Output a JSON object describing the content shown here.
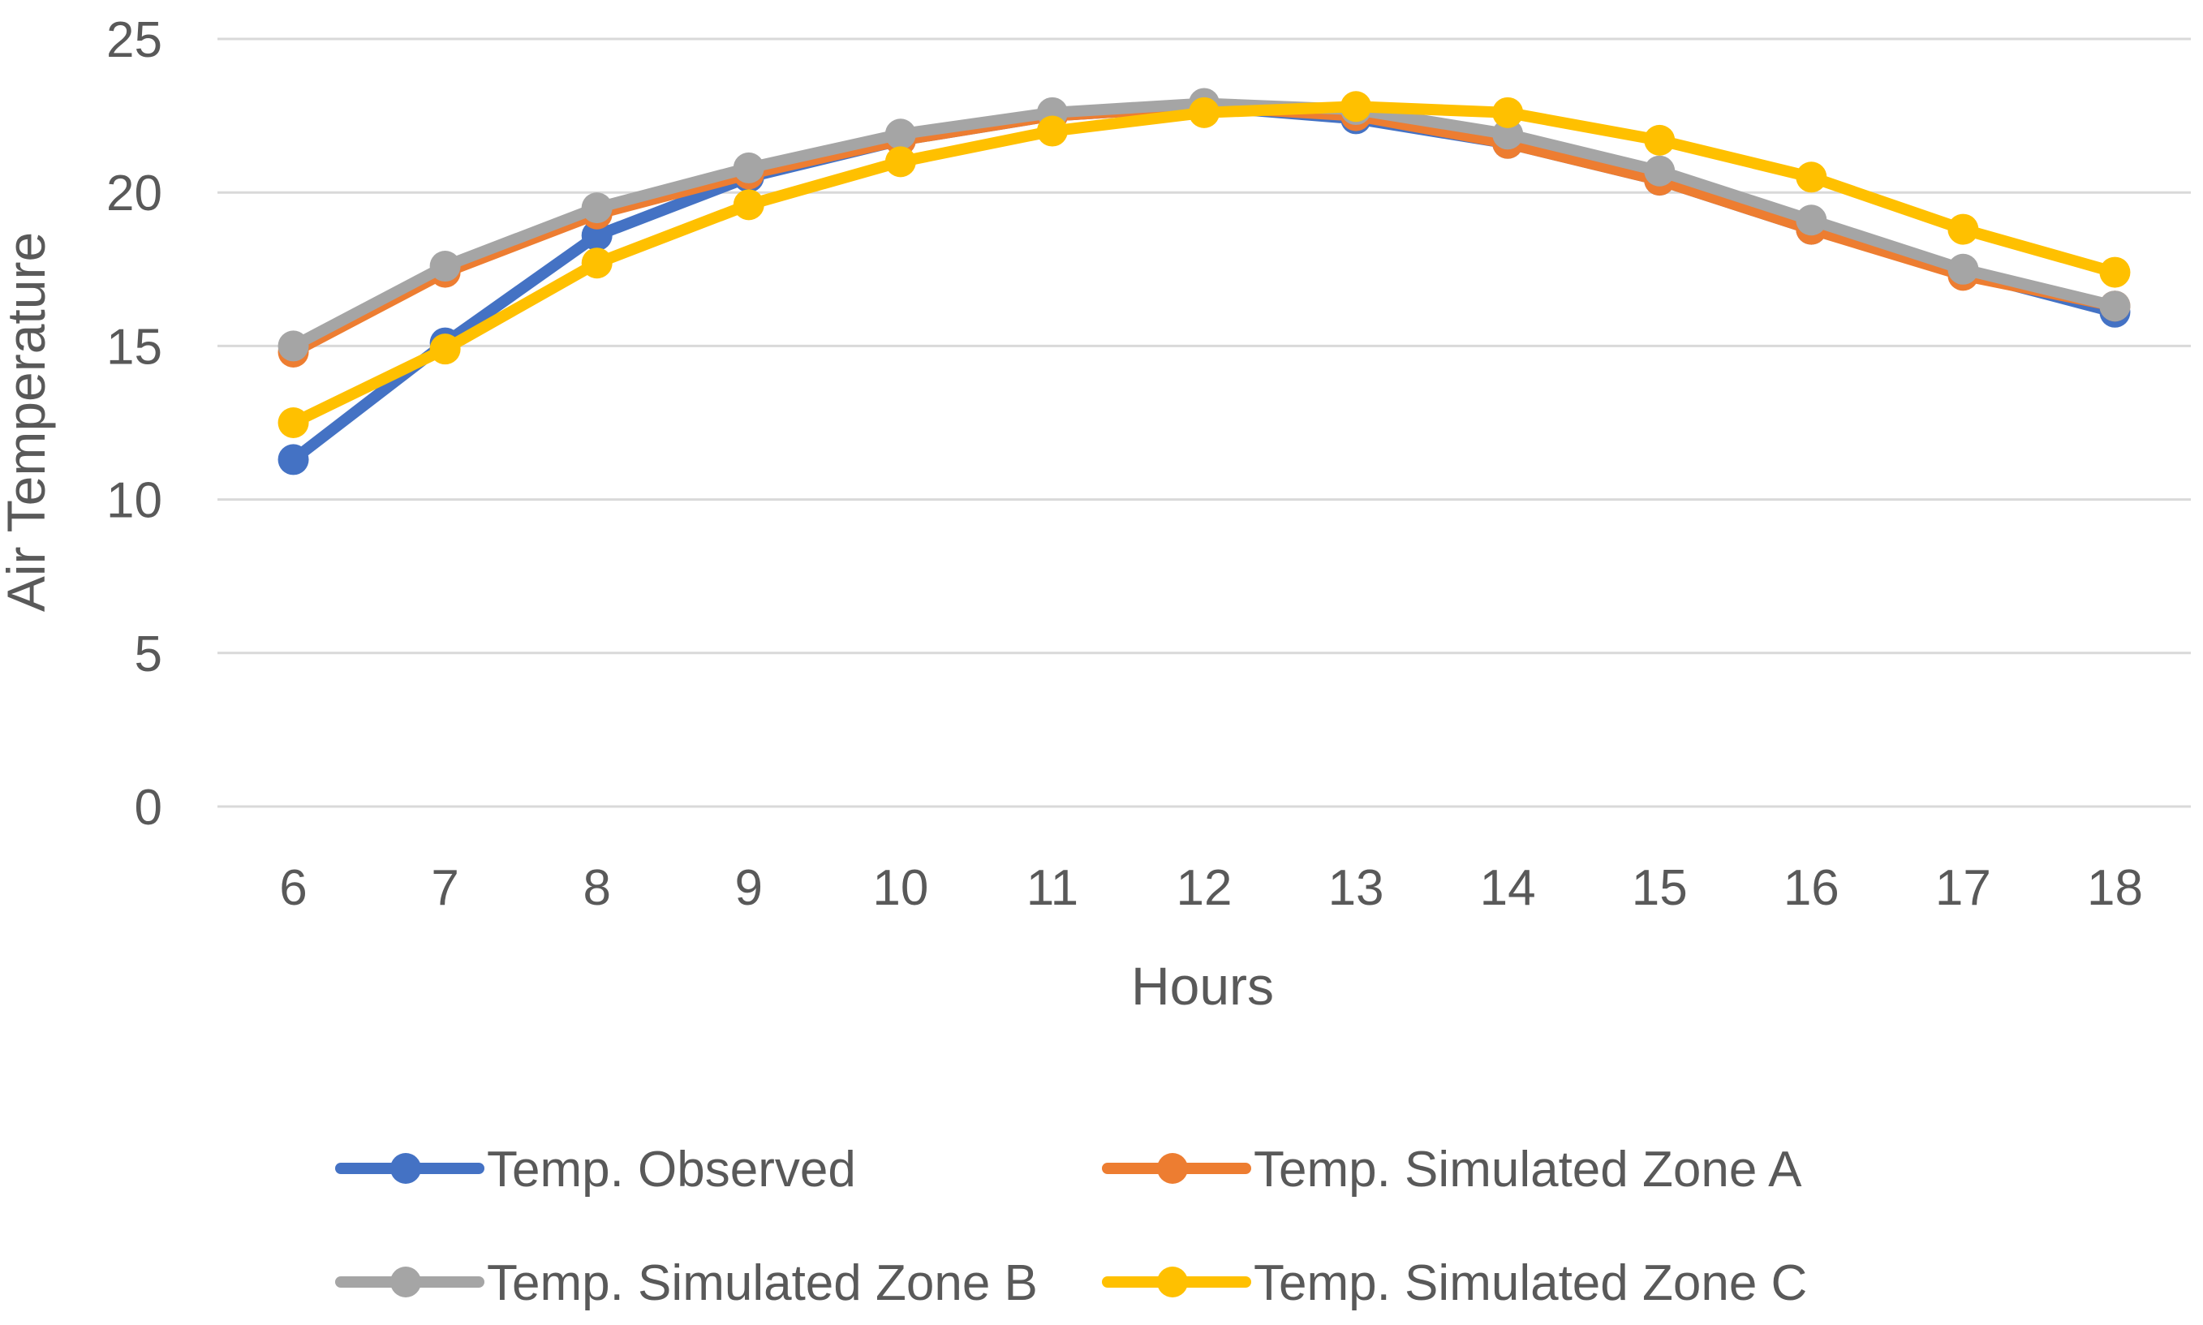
{
  "chart_data": {
    "type": "line",
    "title": "",
    "xlabel": "Hours",
    "ylabel": "Air Temperature",
    "categories": [
      "6",
      "7",
      "8",
      "9",
      "10",
      "11",
      "12",
      "13",
      "14",
      "15",
      "16",
      "17",
      "18"
    ],
    "ylim": [
      0,
      25
    ],
    "yticks": [
      "0",
      "5",
      "10",
      "15",
      "20",
      "25"
    ],
    "grid": true,
    "legend_position": "bottom",
    "series": [
      {
        "name": "Temp. Observed",
        "color": "#4472C4",
        "values": [
          11.3,
          15.1,
          18.6,
          20.5,
          21.7,
          22.5,
          22.8,
          22.4,
          21.6,
          20.4,
          18.8,
          17.4,
          16.1
        ]
      },
      {
        "name": "Temp. Simulated Zone A",
        "color": "#ED7D31",
        "values": [
          14.8,
          17.4,
          19.3,
          20.6,
          21.7,
          22.5,
          22.8,
          22.5,
          21.6,
          20.4,
          18.8,
          17.3,
          16.3
        ]
      },
      {
        "name": "Temp. Simulated Zone B",
        "color": "#A5A5A5",
        "values": [
          15.0,
          17.6,
          19.5,
          20.8,
          21.9,
          22.6,
          22.9,
          22.7,
          21.9,
          20.7,
          19.1,
          17.5,
          16.3
        ]
      },
      {
        "name": "Temp. Simulated Zone C",
        "color": "#FFC000",
        "values": [
          12.5,
          14.9,
          17.7,
          19.6,
          21.0,
          22.0,
          22.6,
          22.8,
          22.6,
          21.7,
          20.5,
          18.8,
          17.4
        ]
      }
    ]
  }
}
